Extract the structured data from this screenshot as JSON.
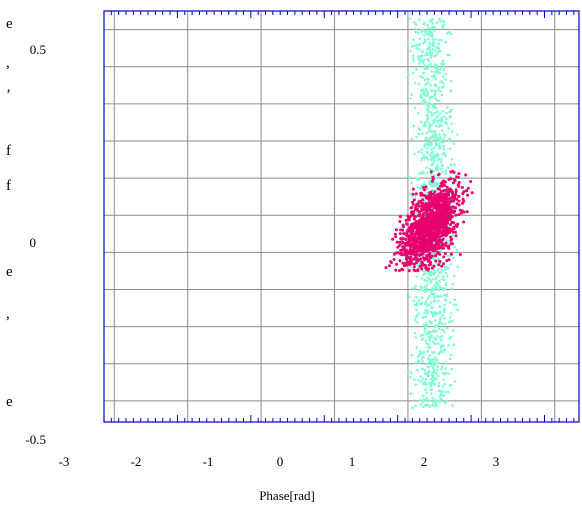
{
  "chart_data": {
    "type": "scatter",
    "title": "",
    "xlabel": "Phase[rad]",
    "ylabel": "",
    "xlim": [
      -3,
      4
    ],
    "ylim": [
      -0.5,
      0.6
    ],
    "x_ticks": [
      -3,
      -2,
      -1,
      0,
      1,
      2,
      3
    ],
    "x_tick_labels": [
      "-3",
      "-2",
      "-1",
      "0",
      "1",
      "2",
      "3"
    ],
    "y_ticks": [
      -0.5,
      0,
      0.5
    ],
    "y_tick_labels": [
      "-0.5",
      "0",
      "0.5"
    ],
    "grid": true,
    "legend": "none",
    "left_edge_glyphs": [
      "e",
      ",",
      "’",
      "f",
      "f",
      "e",
      ",",
      "e"
    ],
    "series": [
      {
        "color": "#7fffd4",
        "points_estimated": 1100,
        "x_center": 2.1,
        "x_halfwidth": 0.32,
        "y_range": [
          -0.47,
          0.58
        ],
        "description_values": {
          "x_mean": 2.1,
          "y_mean": 0.05
        }
      },
      {
        "color": "#e8006e",
        "points_estimated": 1300,
        "x_center": 2.05,
        "x_spread": 0.2,
        "y_center": 0.02,
        "y_spread": 0.06,
        "x_range": [
          1.45,
          2.65
        ],
        "y_range": [
          -0.1,
          0.17
        ],
        "correlation": 0.55
      }
    ]
  }
}
